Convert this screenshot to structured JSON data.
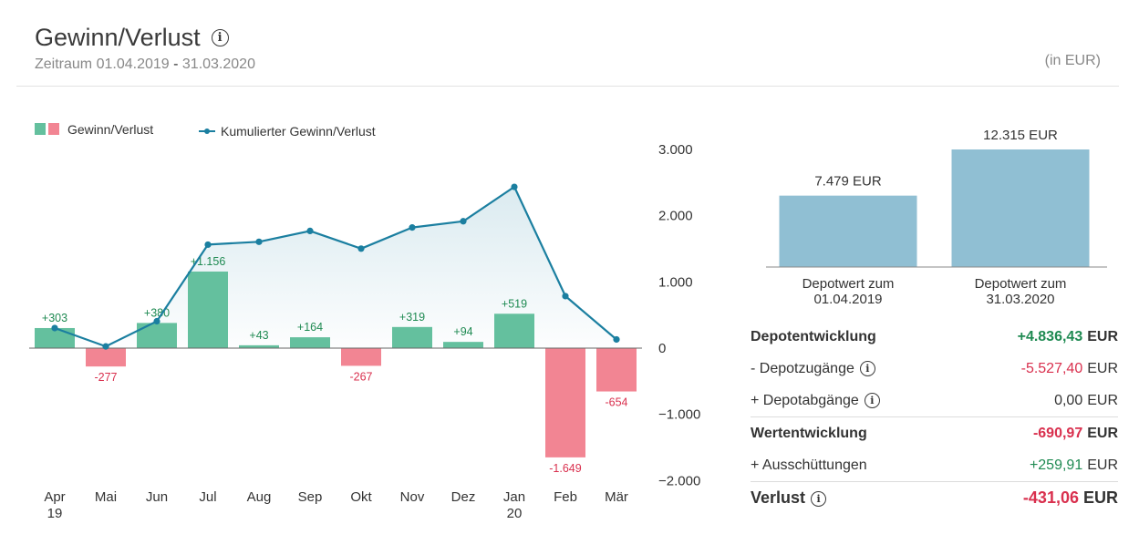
{
  "header": {
    "title": "Gewinn/Verlust",
    "period_label": "Zeitraum",
    "period_start": "01.04.2019",
    "period_sep": "-",
    "period_end": "31.03.2020",
    "unit": "(in EUR)"
  },
  "legend": {
    "bars": "Gewinn/Verlust",
    "line": "Kumulierter Gewinn/Verlust"
  },
  "colors": {
    "positive": "#64c09e",
    "negative": "#f28593",
    "line": "#1b7fa0",
    "depot_bar": "#90bfd3",
    "positive_text": "#1f8a52",
    "negative_text": "#d9304e"
  },
  "chart_data": [
    {
      "type": "bar",
      "categories": [
        "Apr 19",
        "Mai",
        "Jun",
        "Jul",
        "Aug",
        "Sep",
        "Okt",
        "Nov",
        "Dez",
        "Jan 20",
        "Feb",
        "Mär"
      ],
      "x_labels": [
        [
          "Apr",
          "19"
        ],
        [
          "Mai"
        ],
        [
          "Jun"
        ],
        [
          "Jul"
        ],
        [
          "Aug"
        ],
        [
          "Sep"
        ],
        [
          "Okt"
        ],
        [
          "Nov"
        ],
        [
          "Dez"
        ],
        [
          "Jan",
          "20"
        ],
        [
          "Feb"
        ],
        [
          "Mär"
        ]
      ],
      "series": [
        {
          "name": "Gewinn/Verlust",
          "type": "bar",
          "values": [
            303,
            -277,
            380,
            1156,
            43,
            164,
            -267,
            319,
            94,
            519,
            -1649,
            -654
          ],
          "labels": [
            "+303",
            "-277",
            "+380",
            "+1.156",
            "+43",
            "+164",
            "-267",
            "+319",
            "+94",
            "+519",
            "-1.649",
            "-654"
          ]
        },
        {
          "name": "Kumulierter Gewinn/Verlust",
          "type": "line",
          "values": [
            303,
            26,
            406,
            1562,
            1605,
            1769,
            1502,
            1821,
            1915,
            2434,
            785,
            131
          ]
        }
      ],
      "y_ticks": [
        3000,
        2000,
        1000,
        0,
        -1000,
        -2000
      ],
      "y_tick_labels": [
        "3.000",
        "2.000",
        "1.000",
        "0",
        "−1.000",
        "−2.000"
      ],
      "ylim": [
        -2000,
        3000
      ],
      "legend": "top-left"
    },
    {
      "type": "bar",
      "categories": [
        "Depotwert zum 01.04.2019",
        "Depotwert zum 31.03.2020"
      ],
      "category_lines": [
        [
          "Depotwert zum",
          "01.04.2019"
        ],
        [
          "Depotwert zum",
          "31.03.2020"
        ]
      ],
      "values": [
        7479,
        12315
      ],
      "labels": [
        "7.479 EUR",
        "12.315 EUR"
      ]
    }
  ],
  "summary": {
    "currency": "EUR",
    "depotentwicklung": {
      "label": "Depotentwicklung",
      "value": "+4.836,43"
    },
    "depotzugaenge": {
      "label": "- Depotzugänge",
      "value": "-5.527,40"
    },
    "depotabgaenge": {
      "label": "+ Depotabgänge",
      "value": "0,00"
    },
    "wertentwicklung": {
      "label": "Wertentwicklung",
      "value": "-690,97"
    },
    "ausschuettungen": {
      "label": "+ Ausschüttungen",
      "value": "+259,91"
    },
    "verlust": {
      "label": "Verlust",
      "value": "-431,06"
    }
  }
}
